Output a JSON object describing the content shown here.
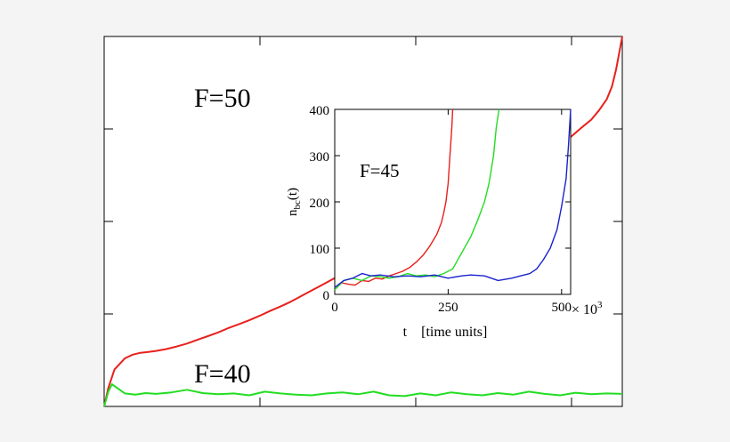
{
  "chart_data": [
    {
      "type": "line",
      "title": "",
      "xlabel": "",
      "ylabel": "",
      "grid": false,
      "annotations": [
        "F=50",
        "F=40"
      ],
      "series": [
        {
          "name": "F=50",
          "color": "#e8201c",
          "x": [
            0.0,
            0.008,
            0.02,
            0.04,
            0.055,
            0.07,
            0.085,
            0.1,
            0.12,
            0.14,
            0.16,
            0.18,
            0.2,
            0.22,
            0.24,
            0.26,
            0.28,
            0.3,
            0.32,
            0.34,
            0.36,
            0.38,
            0.4,
            0.42,
            0.44,
            0.46,
            0.48,
            0.5,
            0.52,
            0.54,
            0.56,
            0.58,
            0.6,
            0.62,
            0.64,
            0.66,
            0.68,
            0.7,
            0.72,
            0.74,
            0.76,
            0.78,
            0.8,
            0.82,
            0.84,
            0.86,
            0.88,
            0.9,
            0.92,
            0.94,
            0.955,
            0.97,
            0.98,
            0.988,
            0.994,
            1.0
          ],
          "y": [
            0.0,
            0.05,
            0.1,
            0.13,
            0.14,
            0.145,
            0.147,
            0.15,
            0.155,
            0.162,
            0.17,
            0.18,
            0.19,
            0.2,
            0.212,
            0.222,
            0.233,
            0.245,
            0.258,
            0.27,
            0.283,
            0.298,
            0.313,
            0.328,
            0.343,
            0.358,
            0.373,
            0.39,
            0.405,
            0.42,
            0.437,
            0.453,
            0.47,
            0.487,
            0.503,
            0.52,
            0.535,
            0.55,
            0.563,
            0.577,
            0.592,
            0.607,
            0.622,
            0.64,
            0.66,
            0.682,
            0.705,
            0.728,
            0.752,
            0.775,
            0.8,
            0.83,
            0.865,
            0.91,
            0.955,
            1.0
          ]
        },
        {
          "name": "F=40",
          "color": "#22dd22",
          "x": [
            0.0,
            0.008,
            0.015,
            0.025,
            0.04,
            0.06,
            0.08,
            0.1,
            0.13,
            0.16,
            0.19,
            0.22,
            0.25,
            0.28,
            0.31,
            0.34,
            0.37,
            0.4,
            0.43,
            0.46,
            0.49,
            0.52,
            0.55,
            0.58,
            0.61,
            0.64,
            0.67,
            0.7,
            0.73,
            0.76,
            0.79,
            0.82,
            0.85,
            0.88,
            0.91,
            0.94,
            0.97,
            1.0
          ],
          "y": [
            0.0,
            0.04,
            0.06,
            0.05,
            0.035,
            0.032,
            0.036,
            0.034,
            0.038,
            0.045,
            0.036,
            0.033,
            0.035,
            0.03,
            0.04,
            0.035,
            0.032,
            0.03,
            0.035,
            0.038,
            0.033,
            0.04,
            0.03,
            0.028,
            0.035,
            0.03,
            0.038,
            0.033,
            0.03,
            0.036,
            0.032,
            0.04,
            0.034,
            0.03,
            0.037,
            0.033,
            0.035,
            0.034
          ]
        }
      ]
    },
    {
      "type": "line",
      "title": "",
      "xlabel": "t    [time units]",
      "ylabel": "n_bc(t)",
      "ylabel_main": "n",
      "ylabel_sub": "bc",
      "ylabel_rest": "(t)",
      "x_multiplier_label": "× 10",
      "x_multiplier_exp": "3",
      "xlim": [
        0,
        520
      ],
      "ylim": [
        0,
        400
      ],
      "xticks": [
        0,
        250,
        500
      ],
      "yticks": [
        0,
        100,
        200,
        300,
        400
      ],
      "grid": false,
      "annotations": [
        "F=45"
      ],
      "series": [
        {
          "name": "red",
          "color": "#e8201c",
          "x": [
            0,
            15,
            30,
            45,
            60,
            75,
            90,
            105,
            120,
            135,
            150,
            165,
            180,
            195,
            210,
            225,
            235,
            240,
            245,
            250,
            254,
            258,
            260
          ],
          "y": [
            10,
            25,
            22,
            20,
            30,
            28,
            35,
            33,
            40,
            45,
            50,
            58,
            70,
            85,
            105,
            130,
            155,
            175,
            200,
            240,
            300,
            360,
            400
          ]
        },
        {
          "name": "green",
          "color": "#22dd22",
          "x": [
            0,
            20,
            40,
            60,
            80,
            100,
            120,
            140,
            160,
            180,
            200,
            220,
            240,
            260,
            280,
            300,
            315,
            330,
            340,
            350,
            356,
            362
          ],
          "y": [
            10,
            30,
            35,
            30,
            40,
            38,
            35,
            38,
            45,
            40,
            42,
            38,
            45,
            55,
            90,
            125,
            160,
            200,
            240,
            300,
            360,
            400
          ]
        },
        {
          "name": "blue",
          "color": "#1a22cc",
          "x": [
            0,
            20,
            40,
            60,
            80,
            100,
            130,
            160,
            190,
            220,
            250,
            280,
            300,
            330,
            360,
            390,
            410,
            430,
            445,
            460,
            475,
            490,
            500,
            510,
            515,
            520
          ],
          "y": [
            15,
            30,
            35,
            45,
            40,
            42,
            38,
            40,
            38,
            42,
            35,
            40,
            42,
            40,
            30,
            35,
            40,
            45,
            55,
            75,
            100,
            140,
            190,
            250,
            320,
            400
          ]
        }
      ]
    }
  ]
}
